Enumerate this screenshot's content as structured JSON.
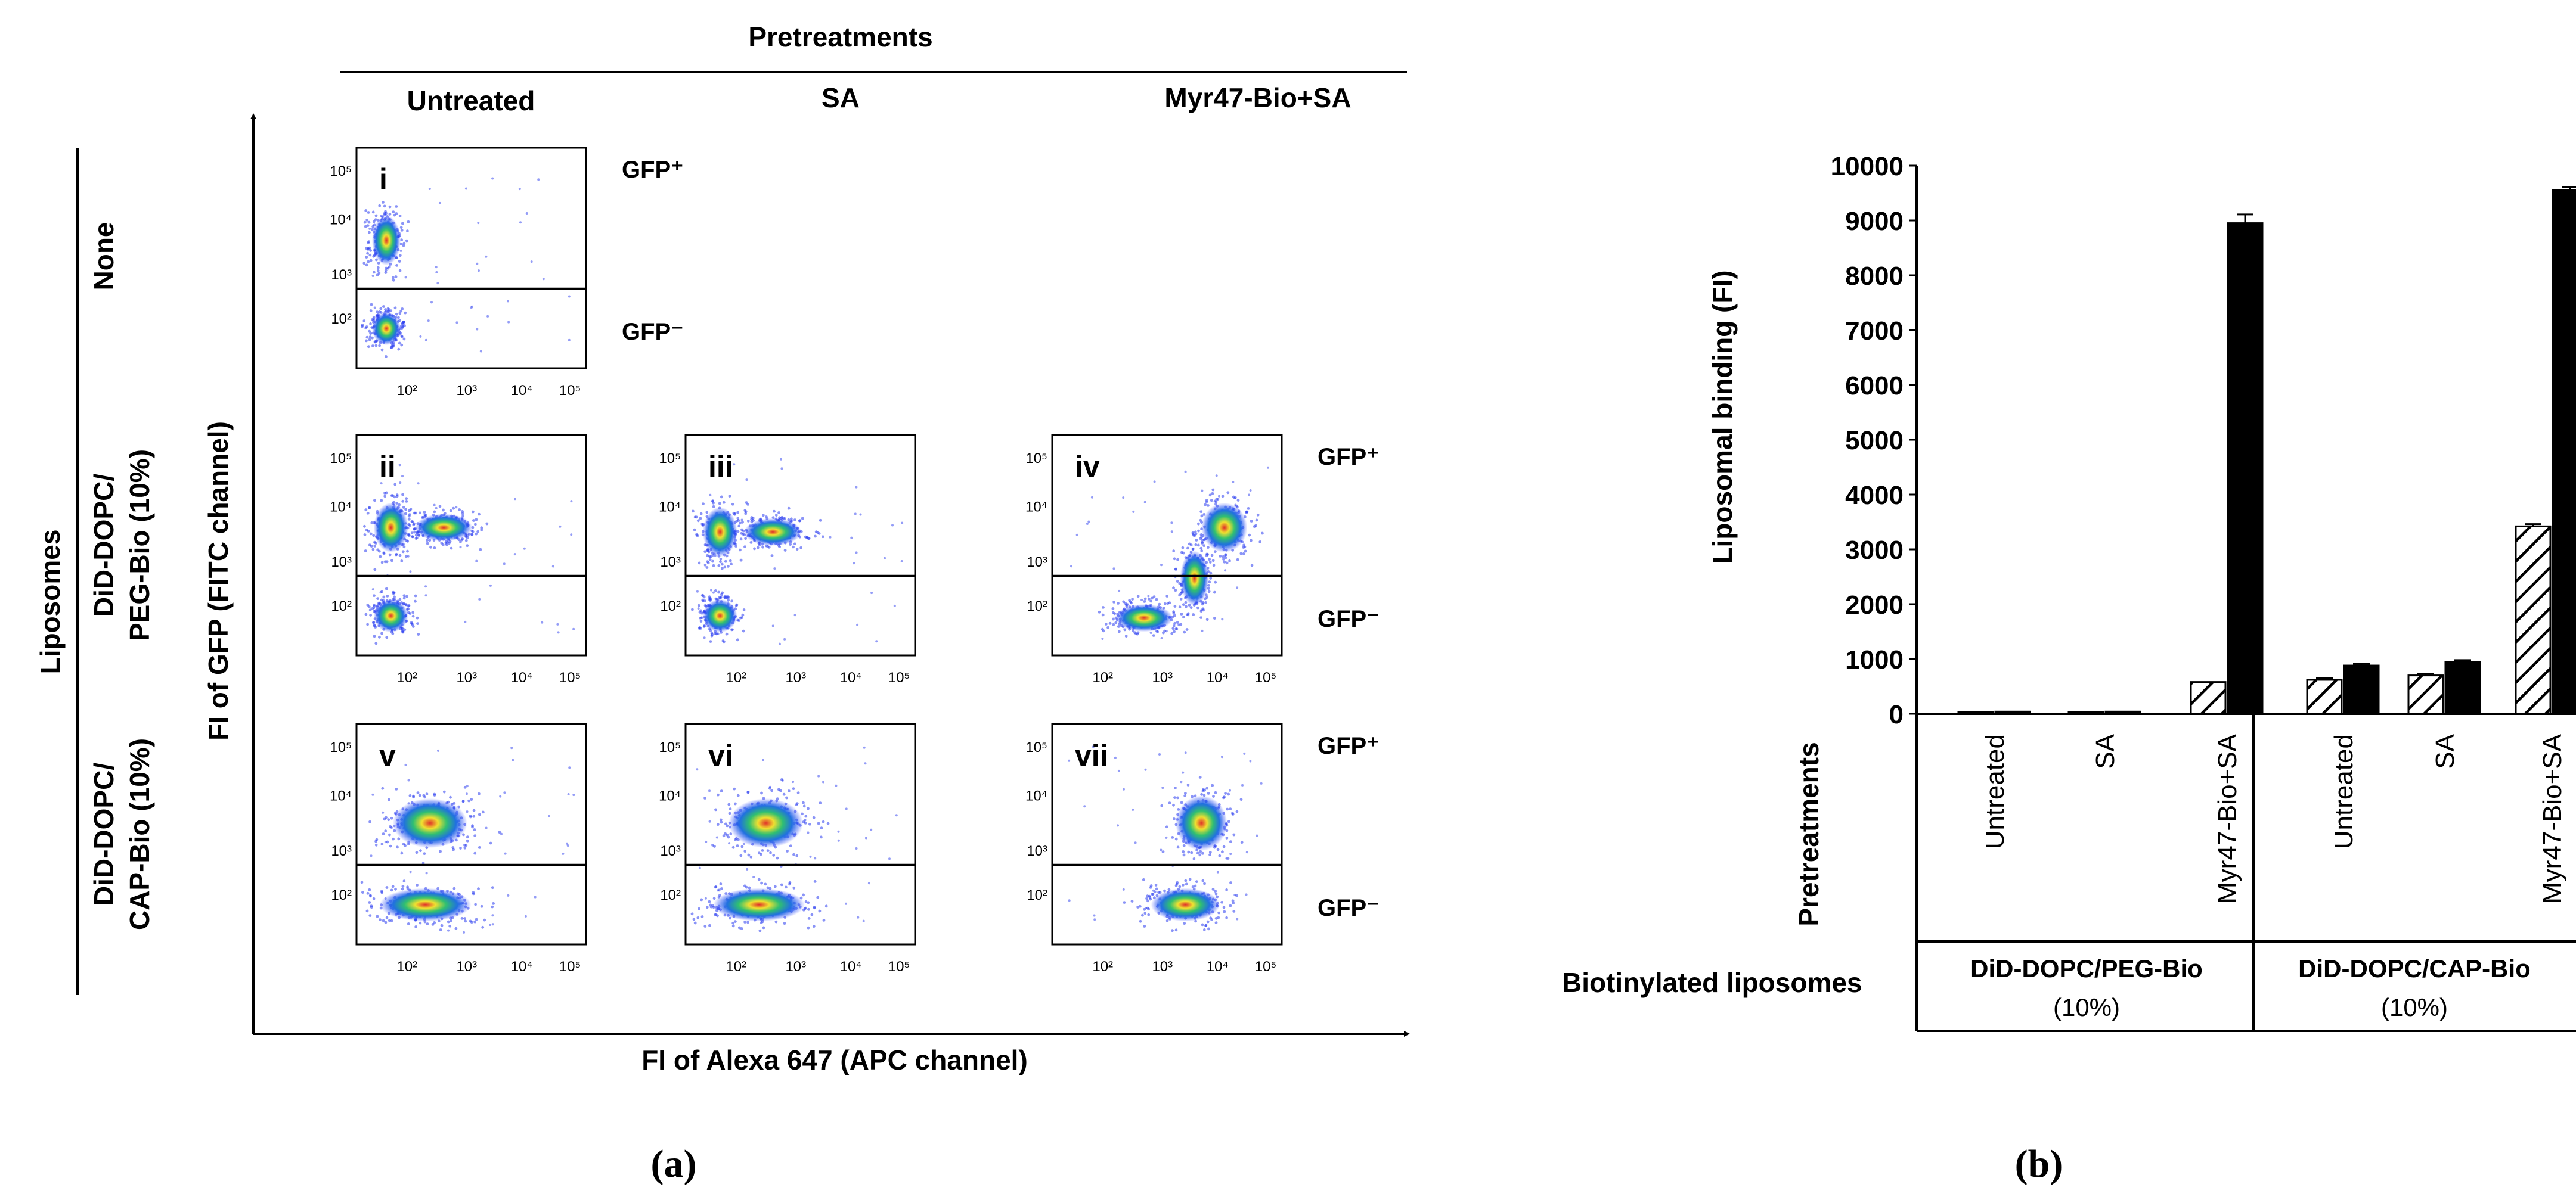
{
  "figure": {
    "panel_a_label": "(a)",
    "panel_b_label": "(b)"
  },
  "panel_a": {
    "pretreatments_title": "Pretreatments",
    "columns": [
      "Untreated",
      "SA",
      "Myr47-Bio+SA"
    ],
    "liposomes_title": "Liposomes",
    "rows": [
      {
        "line1": "None",
        "line2": ""
      },
      {
        "line1": "DiD-DOPC/",
        "line2": "PEG-Bio (10%)"
      },
      {
        "line1": "DiD-DOPC/",
        "line2": "CAP-Bio (10%)"
      }
    ],
    "y_axis_title": "FI of GFP (FITC channel)",
    "x_axis_title": "FI of Alexa 647 (APC channel)",
    "gate_pos": "GFP⁺",
    "gate_neg": "GFP⁻",
    "ticks": [
      "10²",
      "10³",
      "10⁴",
      "10⁵"
    ],
    "plots": [
      {
        "id": "i",
        "row": 0,
        "col": 0
      },
      {
        "id": "ii",
        "row": 1,
        "col": 0
      },
      {
        "id": "iii",
        "row": 1,
        "col": 1
      },
      {
        "id": "iv",
        "row": 1,
        "col": 2
      },
      {
        "id": "v",
        "row": 2,
        "col": 0
      },
      {
        "id": "vi",
        "row": 2,
        "col": 1
      },
      {
        "id": "vii",
        "row": 2,
        "col": 2
      }
    ]
  },
  "chart_data": {
    "type": "bar",
    "ylabel": "Liposomal binding (FI)",
    "ylim": [
      0,
      10000
    ],
    "yticks": [
      0,
      1000,
      2000,
      3000,
      4000,
      5000,
      6000,
      7000,
      8000,
      9000,
      10000
    ],
    "categories": [
      "Untreated",
      "SA",
      "Myr47-Bio+SA",
      "Untreated",
      "SA",
      "Myr47-Bio+SA"
    ],
    "series": [
      {
        "name": "hatched",
        "values": [
          0,
          0,
          580,
          620,
          700,
          3420
        ],
        "errors": [
          0,
          0,
          0,
          30,
          30,
          40
        ]
      },
      {
        "name": "solid",
        "values": [
          40,
          40,
          8950,
          880,
          950,
          9550
        ],
        "errors": [
          0,
          0,
          160,
          30,
          30,
          60
        ]
      }
    ],
    "table": {
      "row1_label": "Pretreatments",
      "row2_label": "Biotinylated liposomes",
      "groups": [
        {
          "line1": "DiD-DOPC/PEG-Bio",
          "line2": "(10%)"
        },
        {
          "line1": "DiD-DOPC/CAP-Bio",
          "line2": "(10%)"
        }
      ]
    }
  }
}
